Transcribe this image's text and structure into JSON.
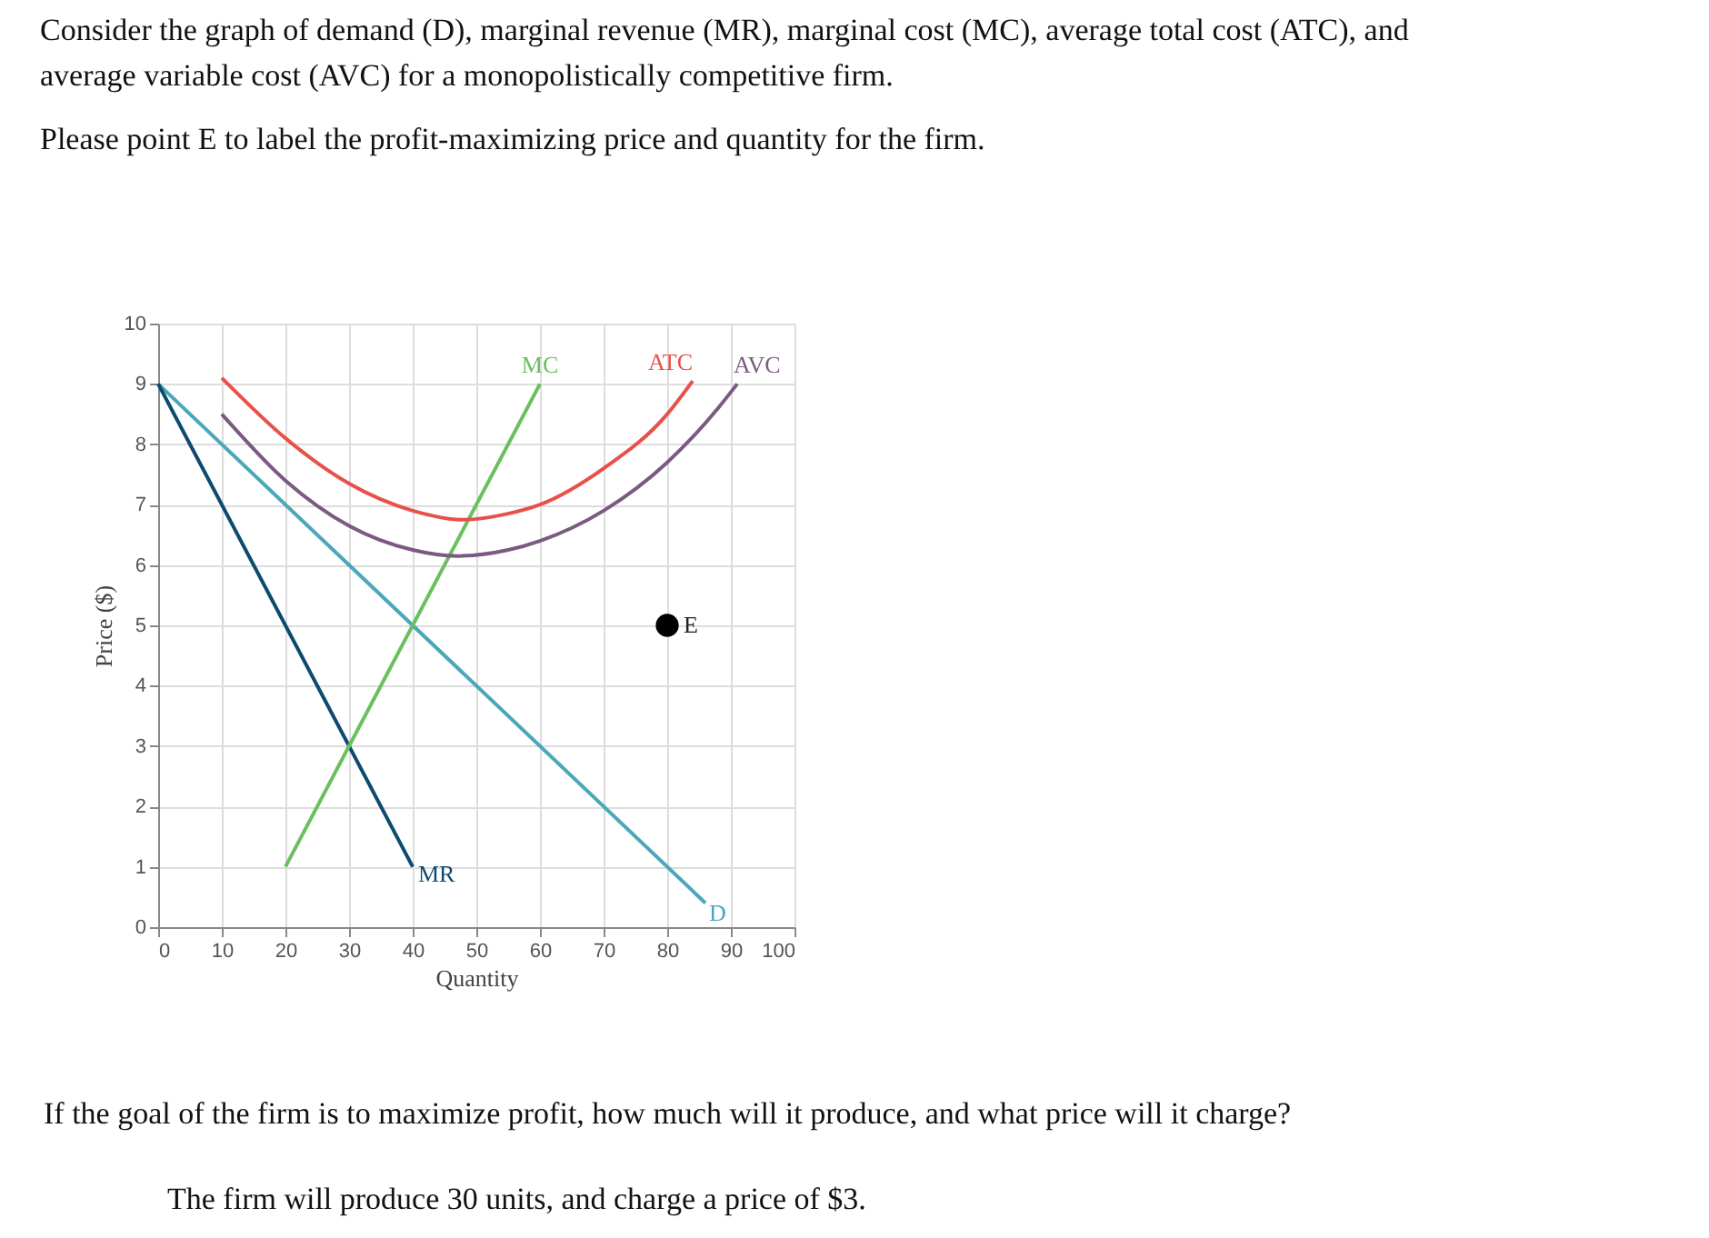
{
  "chart_data": {
    "type": "line",
    "title": "Consider the graph of demand (D), marginal revenue (MR), marginal cost (MC), average total cost (ATC), and average variable cost (AVC) for a monopolistically competitive firm.",
    "subtitle": "Please point E to label the profit-maximizing price and quantity for the firm.",
    "xlabel": "Quantity",
    "ylabel": "Price ($)",
    "xlim": [
      0,
      100
    ],
    "xticks": [
      0,
      10,
      20,
      30,
      40,
      50,
      60,
      70,
      80,
      90,
      100
    ],
    "ylim": [
      0,
      10
    ],
    "yticks": [
      0,
      1,
      2,
      3,
      4,
      5,
      6,
      7,
      8,
      9,
      10
    ],
    "grid": true,
    "line_style": "solid",
    "series": [
      {
        "name": "D",
        "color": "#4aa8b8",
        "x": [
          0,
          86
        ],
        "values": [
          9,
          0.4
        ]
      },
      {
        "name": "MR",
        "color": "#0c4a6e",
        "x": [
          0,
          40
        ],
        "values": [
          9,
          1
        ]
      },
      {
        "name": "MC",
        "color": "#6abf5e",
        "x": [
          20,
          60
        ],
        "values": [
          1,
          9
        ]
      },
      {
        "name": "ATC",
        "color": "#e8504a",
        "x": [
          10,
          20,
          30,
          40,
          48,
          55,
          60,
          70,
          80,
          84
        ],
        "values": [
          9.1,
          8.1,
          7.35,
          6.9,
          6.75,
          6.85,
          7.0,
          7.6,
          8.5,
          9.05
        ]
      },
      {
        "name": "AVC",
        "color": "#7a5a80",
        "x": [
          10,
          20,
          30,
          40,
          47,
          55,
          60,
          70,
          80,
          88,
          91
        ],
        "values": [
          8.5,
          7.4,
          6.65,
          6.25,
          6.15,
          6.25,
          6.4,
          6.9,
          7.7,
          8.6,
          9.0
        ]
      },
      {
        "name": "E",
        "type": "scatter",
        "marker": "circle",
        "color": "#000000",
        "x": [
          80
        ],
        "values": [
          5
        ]
      }
    ],
    "annotations": [
      "If the goal of the firm is to maximize profit, how much will it produce, and what price will it charge?",
      "The firm will produce 30 units, and charge a price of $3."
    ]
  }
}
